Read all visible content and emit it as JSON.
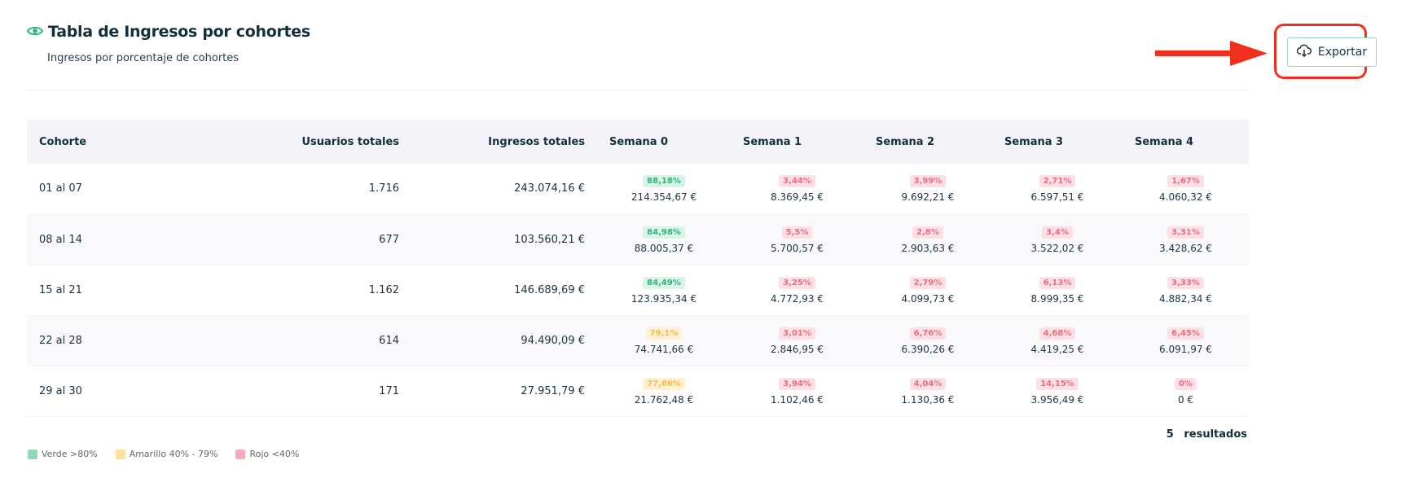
{
  "header": {
    "title": "Tabla de Ingresos por cohortes",
    "subtitle": "Ingresos por porcentaje de cohortes",
    "export_label": "Exportar"
  },
  "table": {
    "columns": [
      "Cohorte",
      "Usuarios totales",
      "Ingresos totales",
      "Semana 0",
      "Semana 1",
      "Semana 2",
      "Semana 3",
      "Semana 4"
    ],
    "rows": [
      {
        "cohort": "01 al 07",
        "users": "1.716",
        "revenue": "243.074,16 €",
        "weeks": [
          {
            "pct": "88,18%",
            "level": "g",
            "amount": "214.354,67 €"
          },
          {
            "pct": "3,44%",
            "level": "rd",
            "amount": "8.369,45 €"
          },
          {
            "pct": "3,99%",
            "level": "rd",
            "amount": "9.692,21 €"
          },
          {
            "pct": "2,71%",
            "level": "rd",
            "amount": "6.597,51 €"
          },
          {
            "pct": "1,67%",
            "level": "rd",
            "amount": "4.060,32 €"
          }
        ]
      },
      {
        "cohort": "08 al 14",
        "users": "677",
        "revenue": "103.560,21 €",
        "weeks": [
          {
            "pct": "84,98%",
            "level": "g",
            "amount": "88.005,37 €"
          },
          {
            "pct": "5,5%",
            "level": "rd",
            "amount": "5.700,57 €"
          },
          {
            "pct": "2,8%",
            "level": "rd",
            "amount": "2.903,63 €"
          },
          {
            "pct": "3,4%",
            "level": "rd",
            "amount": "3.522,02 €"
          },
          {
            "pct": "3,31%",
            "level": "rd",
            "amount": "3.428,62 €"
          }
        ]
      },
      {
        "cohort": "15 al 21",
        "users": "1.162",
        "revenue": "146.689,69 €",
        "weeks": [
          {
            "pct": "84,49%",
            "level": "g",
            "amount": "123.935,34 €"
          },
          {
            "pct": "3,25%",
            "level": "rd",
            "amount": "4.772,93 €"
          },
          {
            "pct": "2,79%",
            "level": "rd",
            "amount": "4.099,73 €"
          },
          {
            "pct": "6,13%",
            "level": "rd",
            "amount": "8.999,35 €"
          },
          {
            "pct": "3,33%",
            "level": "rd",
            "amount": "4.882,34 €"
          }
        ]
      },
      {
        "cohort": "22 al 28",
        "users": "614",
        "revenue": "94.490,09 €",
        "weeks": [
          {
            "pct": "79,1%",
            "level": "y",
            "amount": "74.741,66 €"
          },
          {
            "pct": "3,01%",
            "level": "rd",
            "amount": "2.846,95 €"
          },
          {
            "pct": "6,76%",
            "level": "rd",
            "amount": "6.390,26 €"
          },
          {
            "pct": "4,68%",
            "level": "rd",
            "amount": "4.419,25 €"
          },
          {
            "pct": "6,45%",
            "level": "rd",
            "amount": "6.091,97 €"
          }
        ]
      },
      {
        "cohort": "29 al 30",
        "users": "171",
        "revenue": "27.951,79 €",
        "weeks": [
          {
            "pct": "77,86%",
            "level": "y",
            "amount": "21.762,48 €"
          },
          {
            "pct": "3,94%",
            "level": "rd",
            "amount": "1.102,46 €"
          },
          {
            "pct": "4,04%",
            "level": "rd",
            "amount": "1.130,36 €"
          },
          {
            "pct": "14,15%",
            "level": "rd",
            "amount": "3.956,49 €"
          },
          {
            "pct": "0%",
            "level": "rd",
            "amount": "0 €"
          }
        ]
      }
    ]
  },
  "results": "5 resultados",
  "legend": [
    {
      "label": "Verde >80%",
      "color": "#8fd9b6"
    },
    {
      "label": "Amarillo 40% - 79%",
      "color": "#fde19a"
    },
    {
      "label": "Rojo <40%",
      "color": "#f8aab8"
    }
  ]
}
